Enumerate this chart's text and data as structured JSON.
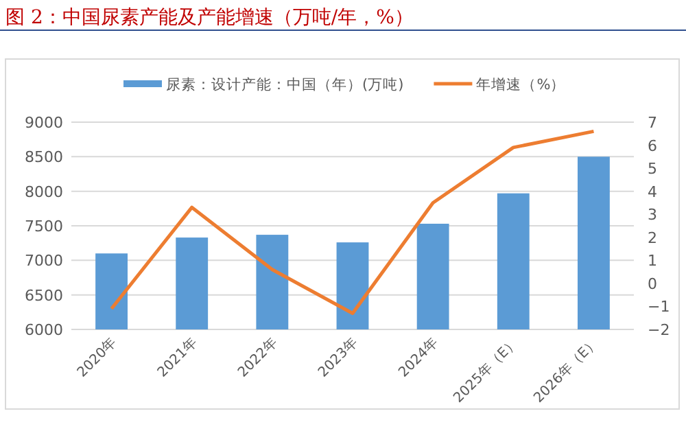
{
  "chart_data": {
    "type": "bar",
    "title": "图 2：中国尿素产能及产能增速（万吨/年，%）",
    "categories": [
      "2020年",
      "2021年",
      "2022年",
      "2023年",
      "2024年",
      "2025年（E）",
      "2026年（E）"
    ],
    "series": [
      {
        "name": "尿素：设计产能：中国（年）(万吨)",
        "color": "#5b9bd5",
        "values": [
          7100,
          7330,
          7370,
          7260,
          7530,
          7970,
          8500
        ]
      },
      {
        "name": "年增速（%）",
        "type": "line",
        "axis": "y2",
        "color": "#ed7d31",
        "values": [
          -1.1,
          3.3,
          0.6,
          -1.3,
          3.5,
          5.9,
          6.6
        ]
      }
    ],
    "ylim": [
      6000,
      9000
    ],
    "yticks": [
      6000,
      6500,
      7000,
      7500,
      8000,
      8500,
      9000
    ],
    "y2lim": [
      -2,
      7
    ],
    "y2ticks": [
      -2,
      -1,
      0,
      1,
      2,
      3,
      4,
      5,
      6,
      7
    ],
    "grid": "y",
    "legend": "top"
  }
}
